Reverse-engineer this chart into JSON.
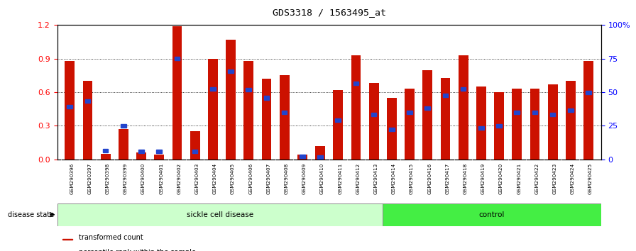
{
  "title": "GDS3318 / 1563495_at",
  "samples": [
    "GSM290396",
    "GSM290397",
    "GSM290398",
    "GSM290399",
    "GSM290400",
    "GSM290401",
    "GSM290402",
    "GSM290403",
    "GSM290404",
    "GSM290405",
    "GSM290406",
    "GSM290407",
    "GSM290408",
    "GSM290409",
    "GSM290410",
    "GSM290411",
    "GSM290412",
    "GSM290413",
    "GSM290414",
    "GSM290415",
    "GSM290416",
    "GSM290417",
    "GSM290418",
    "GSM290419",
    "GSM290420",
    "GSM290421",
    "GSM290422",
    "GSM290423",
    "GSM290424",
    "GSM290425"
  ],
  "red_values": [
    0.88,
    0.7,
    0.05,
    0.27,
    0.06,
    0.04,
    1.19,
    0.25,
    0.9,
    1.07,
    0.88,
    0.72,
    0.75,
    0.04,
    0.12,
    0.62,
    0.93,
    0.68,
    0.55,
    0.63,
    0.8,
    0.73,
    0.93,
    0.65,
    0.6,
    0.63,
    0.63,
    0.67,
    0.7,
    0.88
  ],
  "blue_values": [
    0.47,
    0.52,
    0.08,
    0.3,
    0.07,
    0.07,
    0.9,
    0.07,
    0.63,
    0.79,
    0.62,
    0.55,
    0.42,
    0.03,
    0.02,
    0.35,
    0.68,
    0.4,
    0.27,
    0.42,
    0.46,
    0.57,
    0.63,
    0.28,
    0.3,
    0.42,
    0.42,
    0.4,
    0.44,
    0.6
  ],
  "sickle_count": 18,
  "control_count": 12,
  "ylim_left": [
    0,
    1.2
  ],
  "ylim_right": [
    0,
    100
  ],
  "yticks_left": [
    0,
    0.3,
    0.6,
    0.9,
    1.2
  ],
  "yticks_right": [
    0,
    25,
    50,
    75,
    100
  ],
  "bar_color": "#cc1100",
  "blue_color": "#2244cc",
  "sickle_bg": "#ccffcc",
  "control_bg": "#44ee44",
  "tick_label_bg": "#cccccc"
}
